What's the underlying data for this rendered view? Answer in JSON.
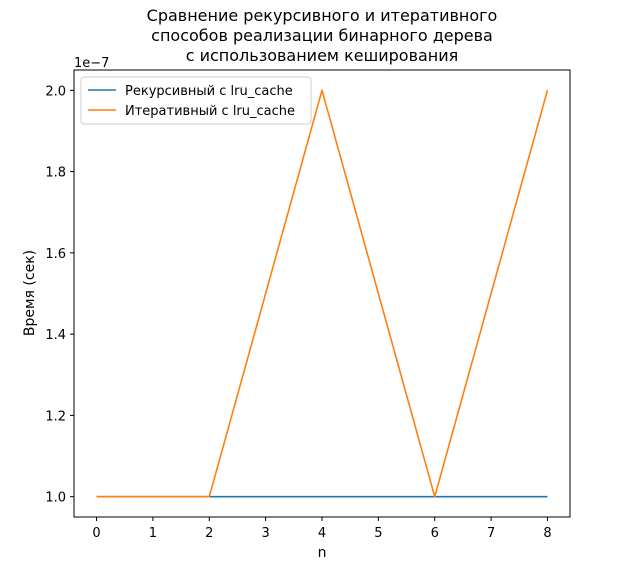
{
  "chart_data": {
    "type": "line",
    "title": [
      "Сравнение рекурсивного и итеративного",
      "способов реализации бинарного дерева",
      "с использованием кеширования"
    ],
    "xlabel": "n",
    "ylabel": "Время (сек)",
    "y_offset_label": "1e−7",
    "y_scale_factor": 1e-07,
    "x": [
      0,
      1,
      2,
      3,
      4,
      5,
      6,
      7,
      8
    ],
    "xlim": [
      -0.4,
      8.4
    ],
    "ylim": [
      0.95,
      2.05
    ],
    "xticks": [
      0,
      1,
      2,
      3,
      4,
      5,
      6,
      7,
      8
    ],
    "yticks": [
      1.0,
      1.2,
      1.4,
      1.6,
      1.8,
      2.0
    ],
    "ytick_labels": [
      "1.0",
      "1.2",
      "1.4",
      "1.6",
      "1.8",
      "2.0"
    ],
    "grid": false,
    "legend_position": "upper-left",
    "series": [
      {
        "name": "Рекурсивный с lru_cache",
        "color": "#1f77b4",
        "x": [
          0,
          1,
          2,
          3,
          4,
          5,
          6,
          7,
          8
        ],
        "values": [
          1.0,
          1.0,
          1.0,
          1.0,
          1.0,
          1.0,
          1.0,
          1.0,
          1.0
        ]
      },
      {
        "name": "Итеративный с lru_cache",
        "color": "#ff7f0e",
        "x": [
          0,
          2,
          4,
          6,
          8
        ],
        "values": [
          1.0,
          1.0,
          2.0,
          1.0,
          2.0
        ]
      }
    ]
  }
}
